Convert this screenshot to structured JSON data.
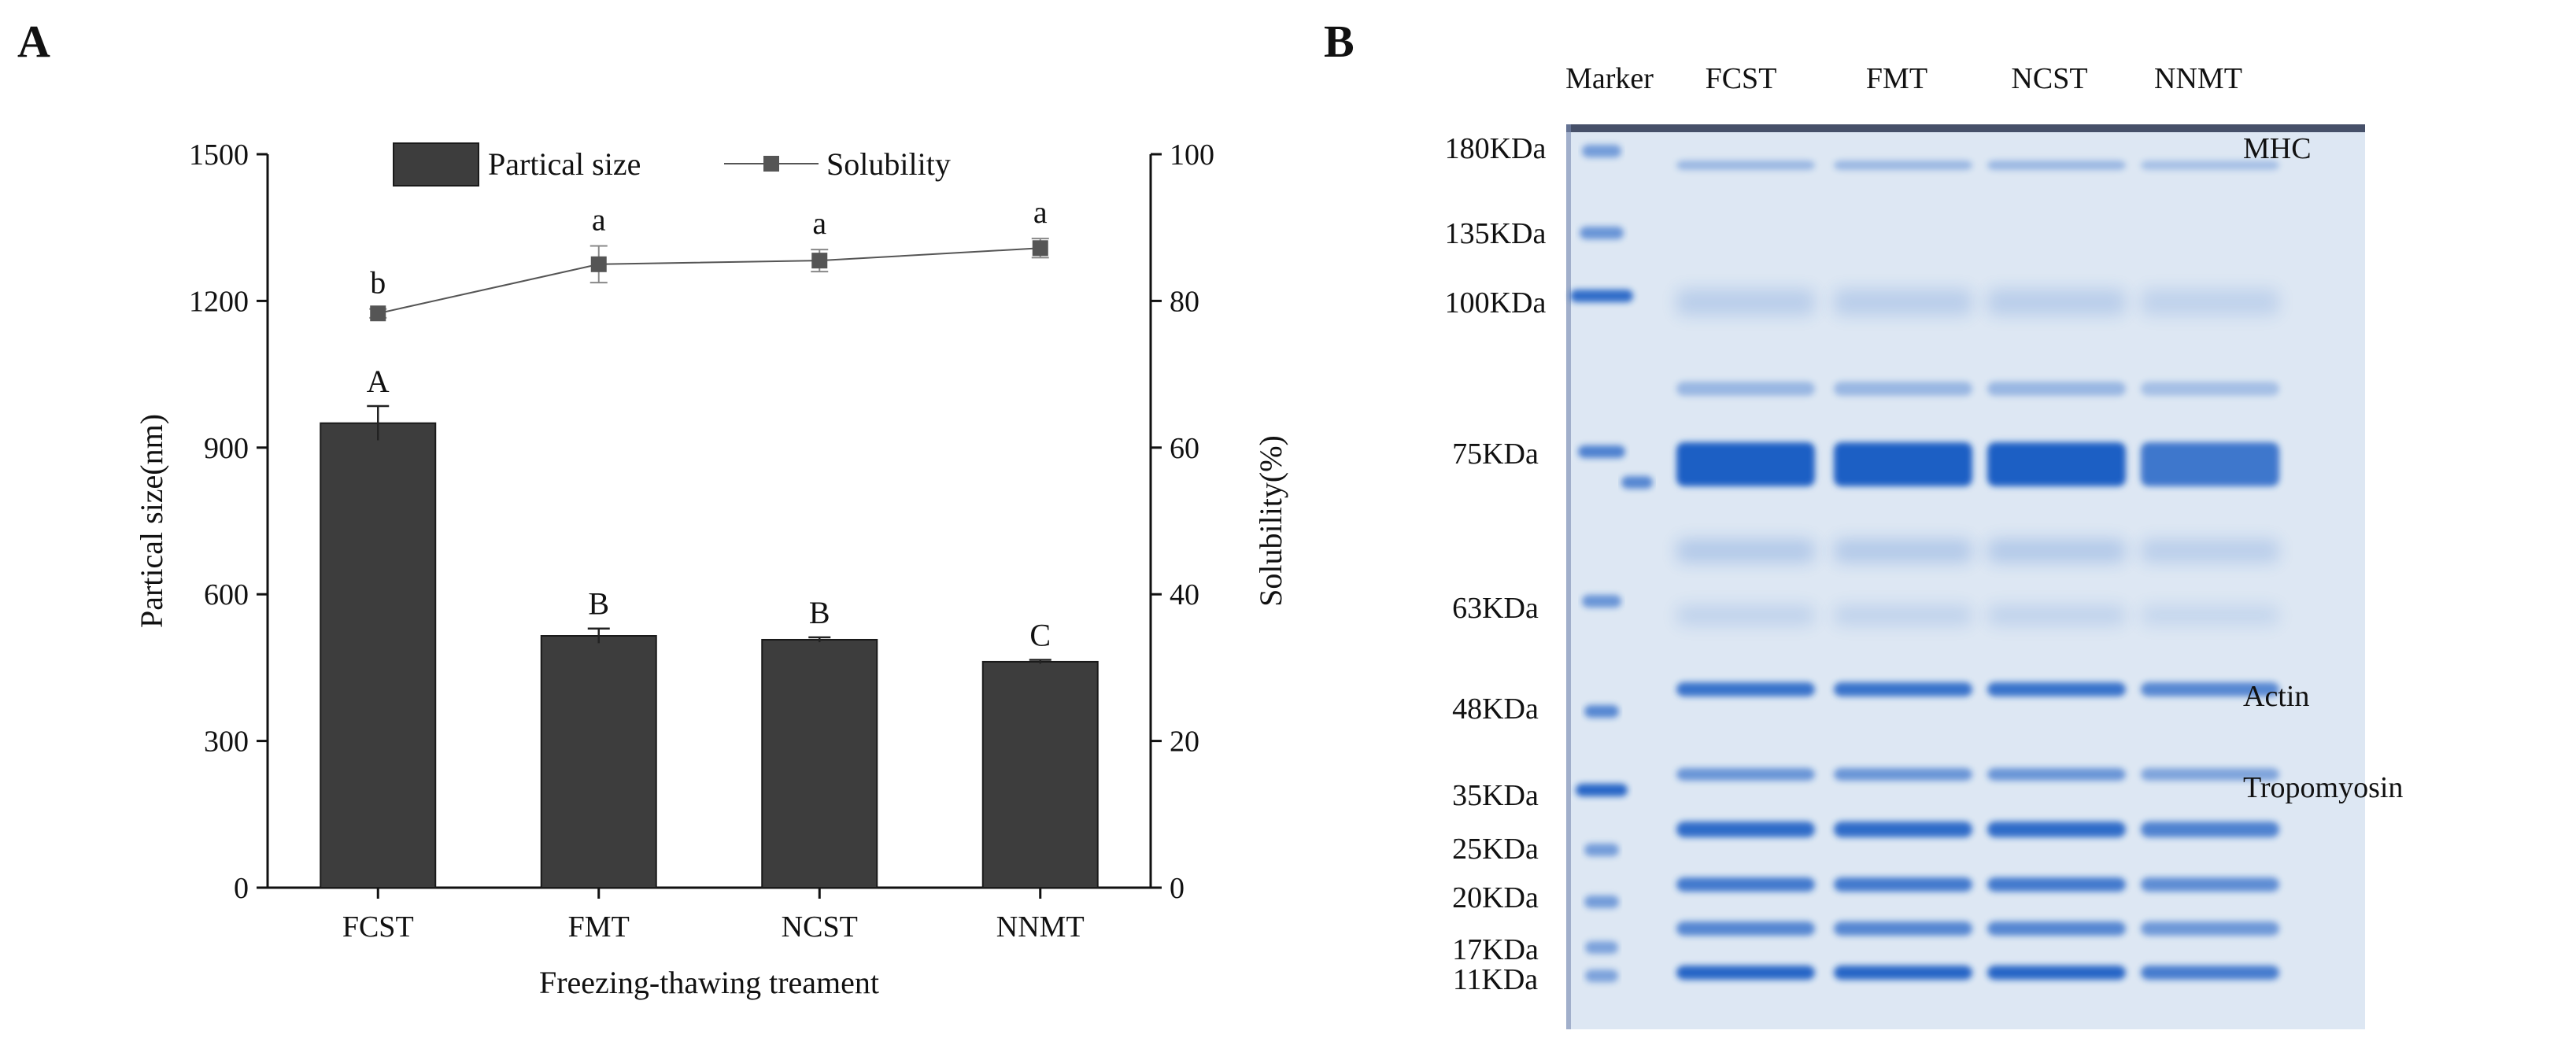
{
  "panels": {
    "a_letter": "A",
    "b_letter": "B"
  },
  "chart_data": {
    "type": "bar",
    "xlabel": "Freezing-thawing treament",
    "categories": [
      "FCST",
      "FMT",
      "NCST",
      "NNMT"
    ],
    "y_left": {
      "label": "Partical size(nm)",
      "lim": [
        0,
        1500
      ],
      "ticks": [
        0,
        300,
        600,
        900,
        1200,
        1500
      ]
    },
    "y_right": {
      "label": "Solubility(%)",
      "lim": [
        0,
        100
      ],
      "ticks": [
        0,
        20,
        40,
        60,
        80,
        100
      ]
    },
    "legend_position": "top",
    "series": [
      {
        "name": "Partical size",
        "kind": "bar",
        "axis": "left",
        "color": "#3d3d3d",
        "values": [
          950,
          515,
          507,
          462
        ],
        "errors": [
          35,
          15,
          5,
          4
        ],
        "labels": [
          "A",
          "B",
          "B",
          "C"
        ]
      },
      {
        "name": "Solubility",
        "kind": "line",
        "axis": "right",
        "color": "#555555",
        "values": [
          78.3,
          85.0,
          85.5,
          87.2
        ],
        "errors": [
          0.6,
          2.5,
          1.5,
          1.3
        ],
        "labels": [
          "b",
          "a",
          "a",
          "a"
        ]
      }
    ]
  },
  "gel": {
    "lanes": [
      "Marker",
      "FCST",
      "FMT",
      "NCST",
      "NNMT"
    ],
    "markers": [
      "180KDa",
      "135KDa",
      "100KDa",
      "75KDa",
      "63KDa",
      "48KDa",
      "35KDa",
      "25KDa",
      "20KDa",
      "17KDa",
      "11KDa"
    ],
    "bands": [
      "MHC",
      "Actin",
      "Tropomyosin"
    ],
    "gel_color": "#dde7f3",
    "band_color": "#1f5fc4"
  }
}
